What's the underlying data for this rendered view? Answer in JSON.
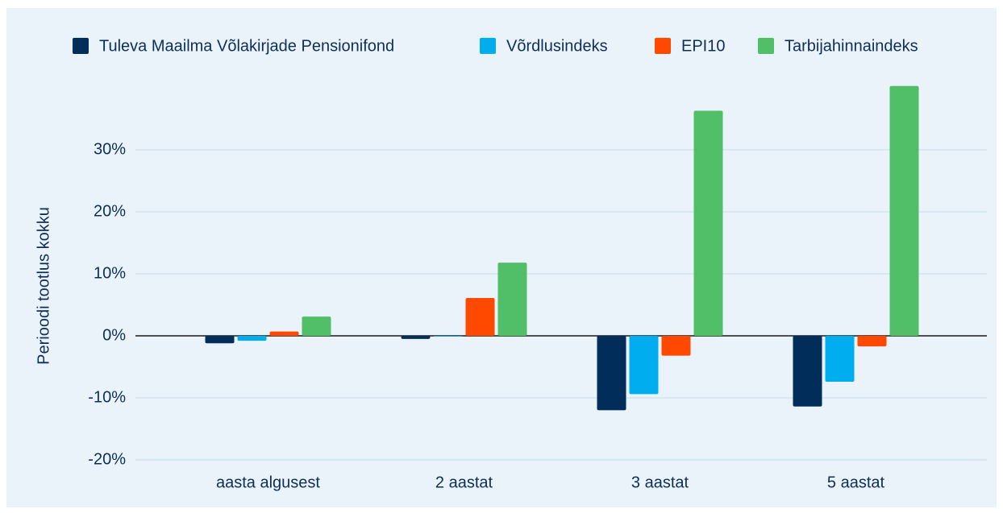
{
  "chart_data": {
    "type": "bar",
    "categories": [
      "aasta algusest",
      "2 aastat",
      "3 aastat",
      "5 aastat"
    ],
    "series": [
      {
        "name": "Tuleva Maailma Võlakirjade Pensionifond",
        "color": "#002d5a",
        "values": [
          -1.2,
          -0.5,
          -12.0,
          -11.4
        ]
      },
      {
        "name": "Võrdlusindeks",
        "color": "#00aeef",
        "values": [
          -0.8,
          -0.1,
          -9.4,
          -7.4
        ]
      },
      {
        "name": "EPI10",
        "color": "#ff4800",
        "values": [
          0.7,
          6.1,
          -3.2,
          -1.7
        ]
      },
      {
        "name": "Tarbijahinnaindeks",
        "color": "#51be68",
        "values": [
          3.1,
          11.8,
          36.3,
          40.3
        ]
      }
    ],
    "y_label": "Perioodi tootlus kokku",
    "ylim": [
      -20,
      42
    ],
    "yticks": [
      {
        "value": -20,
        "label": "-20%"
      },
      {
        "value": -10,
        "label": "-10%"
      },
      {
        "value": 0,
        "label": "0%"
      },
      {
        "value": 10,
        "label": "10%"
      },
      {
        "value": 20,
        "label": "20%"
      },
      {
        "value": 30,
        "label": "30%"
      }
    ],
    "grid": true,
    "legend": "top"
  }
}
